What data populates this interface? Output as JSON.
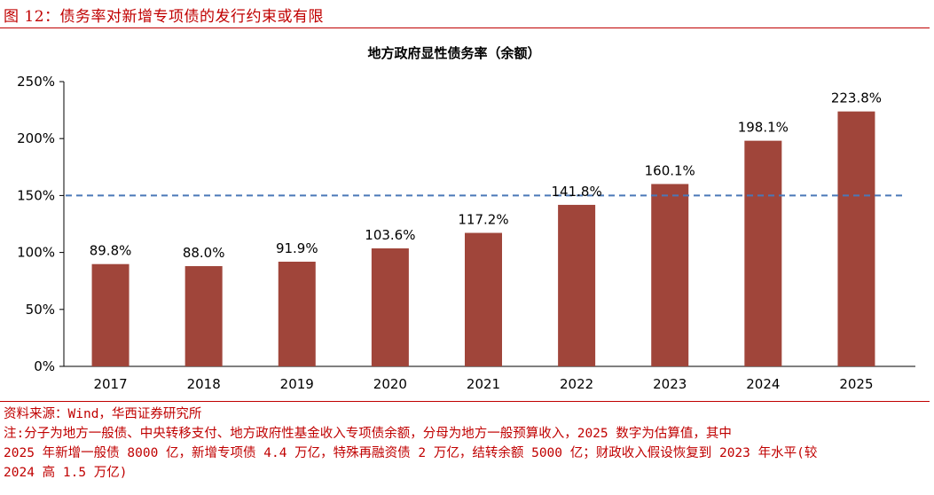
{
  "figure": {
    "caption": "图 12：债务率对新增专项债的发行约束或有限",
    "source": "资料来源：Wind，华西证券研究所",
    "note_lines": [
      "注:分子为地方一般债、中央转移支付、地方政府性基金收入专项债余额，分母为地方一般预算收入，2025 数字为估算值，其中",
      "2025 年新增一般债 8000 亿，新增专项债 4.4 万亿，特殊再融资债 2 万亿，结转余额 5000 亿；财政收入假设恢复到 2023 年水平(较",
      "2024 高 1.5 万亿)"
    ]
  },
  "chart_data": {
    "type": "bar",
    "title": "地方政府显性债务率（余额）",
    "categories": [
      "2017",
      "2018",
      "2019",
      "2020",
      "2021",
      "2022",
      "2023",
      "2024",
      "2025"
    ],
    "values": [
      89.8,
      88.0,
      91.9,
      103.6,
      117.2,
      141.8,
      160.1,
      198.1,
      223.8
    ],
    "value_labels": [
      "89.8%",
      "88.0%",
      "91.9%",
      "103.6%",
      "117.2%",
      "141.8%",
      "160.1%",
      "198.1%",
      "223.8%"
    ],
    "ylim": [
      0,
      250
    ],
    "yticks": [
      0,
      50,
      100,
      150,
      200,
      250
    ],
    "ytick_labels": [
      "0%",
      "50%",
      "100%",
      "150%",
      "200%",
      "250%"
    ],
    "reference_line": 150,
    "bar_color": "#a0453a",
    "reference_color": "#4a78b8",
    "grid": false,
    "legend": "none"
  }
}
